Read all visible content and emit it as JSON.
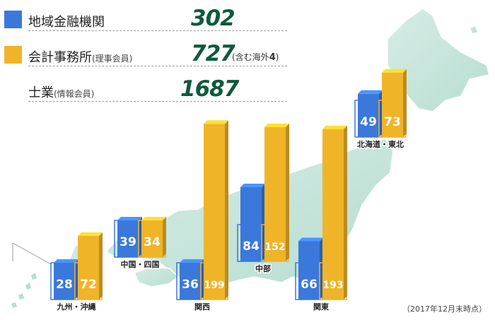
{
  "legend": {
    "financial": {
      "label": "地域金融機関",
      "value": "302",
      "color": "#3b78dc"
    },
    "accounting": {
      "label": "会計事務所",
      "sub": "(理事会員)",
      "value": "727",
      "note_prefix": "(含む海外",
      "note_num": "4",
      "note_suffix": ")",
      "color": "#f0b429"
    },
    "shigyo": {
      "label": "士業",
      "sub": "(情報会員)",
      "value": "1687"
    }
  },
  "as_of": "（2017年12月末時点）",
  "chart_data": {
    "type": "bar",
    "categories": [
      "九州・沖縄",
      "中国・四国",
      "関西",
      "中部",
      "関東",
      "北海道・東北"
    ],
    "series": [
      {
        "name": "地域金融機関",
        "color": "#3b78dc",
        "values": [
          28,
          39,
          36,
          84,
          66,
          49
        ]
      },
      {
        "name": "会計事務所",
        "color": "#f0b429",
        "values": [
          72,
          34,
          199,
          152,
          193,
          73
        ]
      }
    ],
    "title": "",
    "xlabel": "",
    "ylabel": "",
    "grid": false,
    "legend_position": "top-left"
  }
}
